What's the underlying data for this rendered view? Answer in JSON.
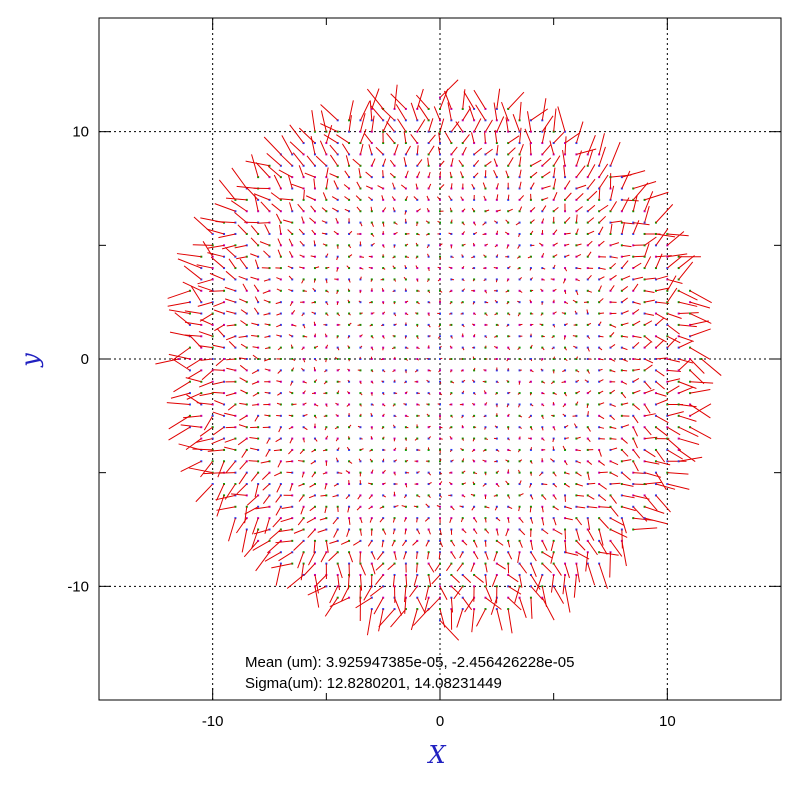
{
  "chart_data": {
    "type": "scatter",
    "subtype": "quiver",
    "title": "",
    "xlabel": "X",
    "ylabel": "y",
    "xlim": [
      -15,
      15
    ],
    "ylim": [
      -15,
      15
    ],
    "x_ticks": [
      -10,
      0,
      10
    ],
    "y_ticks": [
      -10,
      0,
      10
    ],
    "x_tick_labels": [
      "-10",
      "0",
      "10"
    ],
    "y_tick_labels": [
      "-10",
      "0",
      "10"
    ],
    "grid": true,
    "field": {
      "region": "disk",
      "center": [
        0,
        0
      ],
      "radius": 11.5,
      "grid_step": 0.5
    },
    "annotations": {
      "mean_label": "Mean (um): 3.925947385e-05, -2.456426228e-05",
      "sigma_label": "Sigma(um): 12.8280201, 14.08231449"
    },
    "colors": {
      "axis": "#000000",
      "grid": "#000000",
      "label": "#2020c0",
      "arrow": "#e00000",
      "marker_a": "#00a000",
      "marker_b": "#c000c0",
      "marker_c": "#2040ff"
    }
  }
}
